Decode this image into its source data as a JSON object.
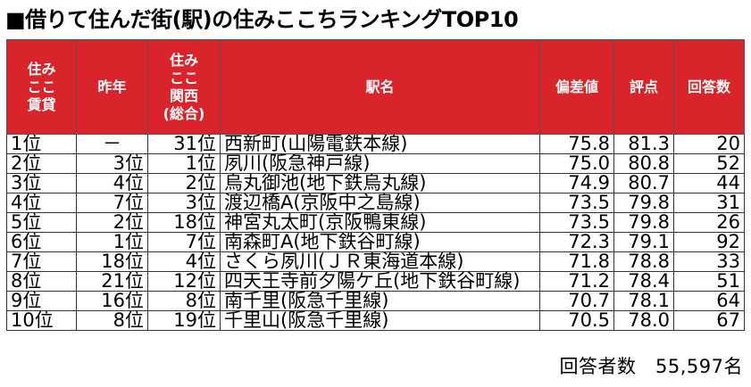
{
  "title": "■借りて住んだ街(駅)の住みここちランキングTOP10",
  "headers": {
    "rank_rental": [
      "住み",
      "ここ",
      "賃貸"
    ],
    "prev_year": "昨年",
    "rank_kansai": [
      "住み",
      "ここ",
      "関西",
      "(総合)"
    ],
    "station": "駅名",
    "deviation": "偏差値",
    "score": "評点",
    "responses": "回答数"
  },
  "rows": [
    {
      "rank": "1位",
      "prev": "－",
      "kansai": "31位",
      "station": "西新町(山陽電鉄本線)",
      "deviation": "75.8",
      "score": "81.3",
      "responses": "20"
    },
    {
      "rank": "2位",
      "prev": "3位",
      "kansai": "1位",
      "station": "夙川(阪急神戸線)",
      "deviation": "75.0",
      "score": "80.8",
      "responses": "52"
    },
    {
      "rank": "3位",
      "prev": "4位",
      "kansai": "2位",
      "station": "烏丸御池(地下鉄烏丸線)",
      "deviation": "74.9",
      "score": "80.7",
      "responses": "44"
    },
    {
      "rank": "4位",
      "prev": "7位",
      "kansai": "3位",
      "station": "渡辺橋A(京阪中之島線)",
      "deviation": "73.5",
      "score": "79.8",
      "responses": "31"
    },
    {
      "rank": "5位",
      "prev": "2位",
      "kansai": "18位",
      "station": "神宮丸太町(京阪鴨東線)",
      "deviation": "73.5",
      "score": "79.8",
      "responses": "26"
    },
    {
      "rank": "6位",
      "prev": "1位",
      "kansai": "7位",
      "station": "南森町A(地下鉄谷町線)",
      "deviation": "72.3",
      "score": "79.1",
      "responses": "92"
    },
    {
      "rank": "7位",
      "prev": "18位",
      "kansai": "4位",
      "station": "さくら夙川(ＪＲ東海道本線)",
      "deviation": "71.8",
      "score": "78.8",
      "responses": "33"
    },
    {
      "rank": "8位",
      "prev": "21位",
      "kansai": "12位",
      "station": "四天王寺前夕陽ケ丘(地下鉄谷町線)",
      "deviation": "71.2",
      "score": "78.4",
      "responses": "51"
    },
    {
      "rank": "9位",
      "prev": "16位",
      "kansai": "8位",
      "station": "南千里(阪急千里線)",
      "deviation": "70.7",
      "score": "78.1",
      "responses": "64"
    },
    {
      "rank": "10位",
      "prev": "8位",
      "kansai": "19位",
      "station": "千里山(阪急千里線)",
      "deviation": "70.5",
      "score": "78.0",
      "responses": "67"
    }
  ],
  "footer": {
    "respondents": "回答者数　55,597名"
  },
  "colors": {
    "header_bg": "#d9242b",
    "header_text": "#ffffff"
  }
}
